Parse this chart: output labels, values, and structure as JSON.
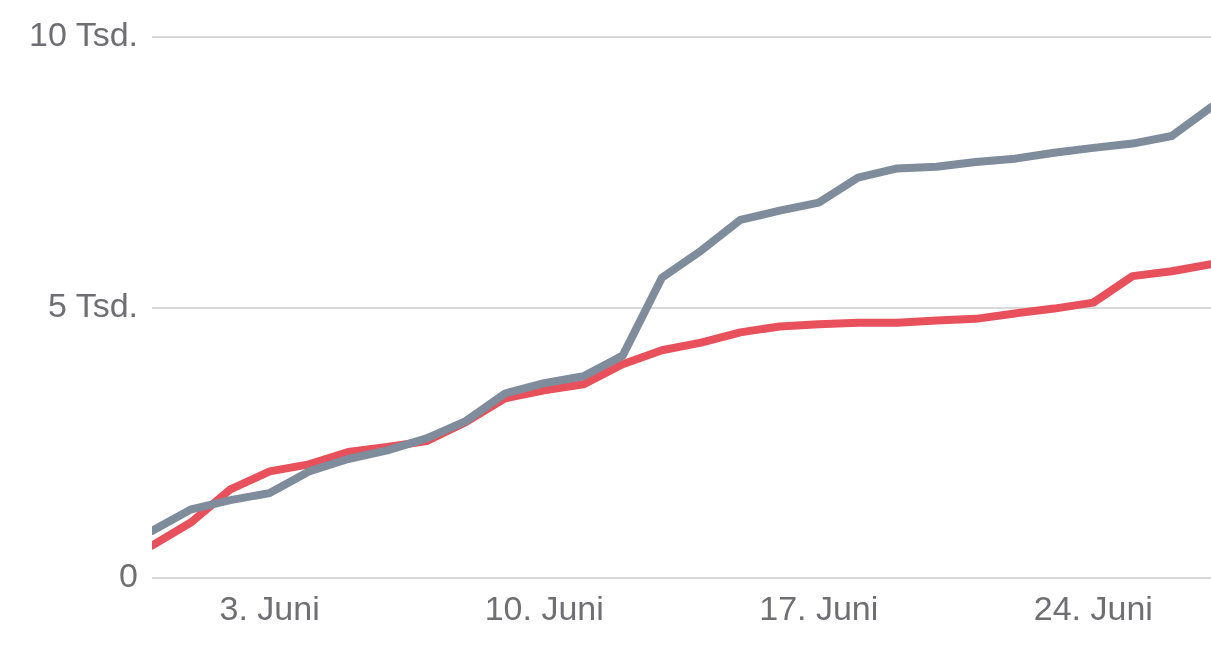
{
  "chart_data": {
    "type": "line",
    "x": [
      "--05-31",
      "--06-01",
      "--06-02",
      "--06-03",
      "--06-04",
      "--06-05",
      "--06-06",
      "--06-07",
      "--06-08",
      "--06-09",
      "--06-10",
      "--06-11",
      "--06-12",
      "--06-13",
      "--06-14",
      "--06-15",
      "--06-16",
      "--06-17",
      "--06-18",
      "--06-19",
      "--06-20",
      "--06-21",
      "--06-22",
      "--06-23",
      "--06-24",
      "--06-25",
      "--06-26",
      "--06-27"
    ],
    "series": [
      {
        "color": "#7f8c9c",
        "values": [
          0.87,
          1.27,
          1.44,
          1.57,
          1.97,
          2.2,
          2.36,
          2.58,
          2.9,
          3.41,
          3.6,
          3.73,
          4.11,
          5.55,
          6.05,
          6.62,
          6.79,
          6.94,
          7.4,
          7.57,
          7.6,
          7.69,
          7.75,
          7.86,
          7.95,
          8.03,
          8.17,
          8.7
        ]
      },
      {
        "color": "#e8505b",
        "values": [
          0.6,
          1.03,
          1.64,
          1.97,
          2.1,
          2.33,
          2.42,
          2.53,
          2.88,
          3.32,
          3.47,
          3.58,
          3.95,
          4.21,
          4.35,
          4.54,
          4.65,
          4.69,
          4.72,
          4.72,
          4.76,
          4.79,
          4.89,
          4.98,
          5.09,
          5.58,
          5.67,
          5.8
        ]
      }
    ],
    "xlim": [
      "--05-31",
      "--06-27"
    ],
    "xticks": [
      {
        "value": "--06-03",
        "label": "3. Juni"
      },
      {
        "value": "--06-10",
        "label": "10. Juni"
      },
      {
        "value": "--06-17",
        "label": "17. Juni"
      },
      {
        "value": "--06-24",
        "label": "24. Juni"
      }
    ],
    "ylim": [
      0,
      10
    ],
    "yticks": [
      0,
      {
        "value": 5,
        "label": "5 Tsd."
      },
      {
        "value": 10,
        "label": "10 Tsd."
      }
    ],
    "grid": "y"
  }
}
